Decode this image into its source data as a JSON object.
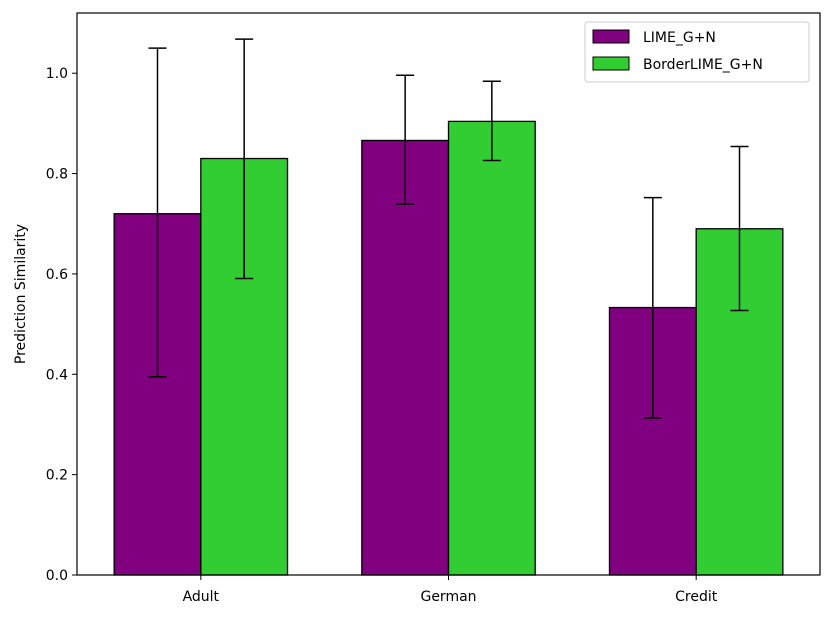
{
  "chart_data": {
    "type": "bar",
    "categories": [
      "Adult",
      "German",
      "Credit"
    ],
    "ylabel": "Prediction Similarity",
    "xlabel": "",
    "ylim": [
      0,
      1.12
    ],
    "yticks": [
      "0.0",
      "0.2",
      "0.4",
      "0.6",
      "0.8",
      "1.0"
    ],
    "legend_position": "top-right",
    "grid": false,
    "series": [
      {
        "name": "LIME_G+N",
        "color": "#800080",
        "values": [
          0.72,
          0.866,
          0.533
        ],
        "err_low": [
          0.395,
          0.739,
          0.313
        ],
        "err_high": [
          1.05,
          0.996,
          0.752
        ]
      },
      {
        "name": "BorderLIME_G+N",
        "color": "#32cd32",
        "values": [
          0.83,
          0.904,
          0.69
        ],
        "err_low": [
          0.591,
          0.826,
          0.527
        ],
        "err_high": [
          1.068,
          0.984,
          0.854
        ]
      }
    ]
  }
}
